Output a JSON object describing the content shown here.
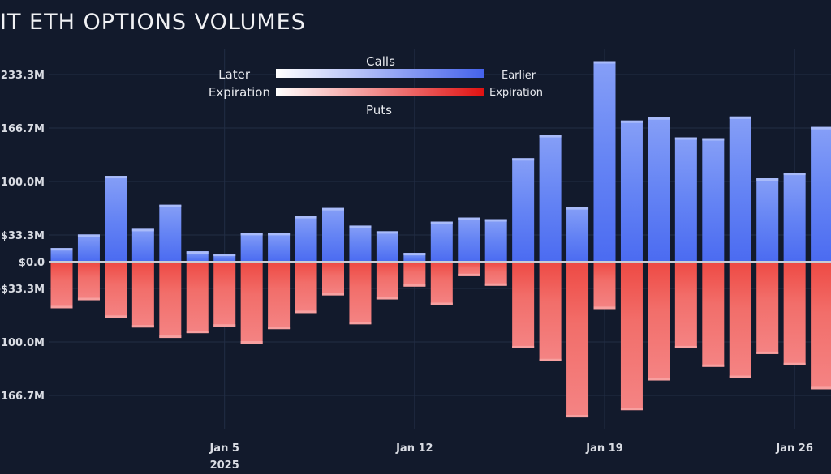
{
  "title": "IT ETH OPTIONS VOLUMES",
  "chart_data": {
    "type": "bar",
    "stacked": true,
    "title": "IT ETH OPTIONS VOLUMES",
    "xlabel": "",
    "ylabel": "",
    "ylim": [
      -233.3,
      250
    ],
    "yunit": "M USD",
    "y_ticks": [
      {
        "value": 233.3,
        "label": "$233.3M"
      },
      {
        "value": 166.7,
        "label": "$166.7M"
      },
      {
        "value": 100.0,
        "label": "$100.0M"
      },
      {
        "value": 33.3,
        "label": "$33.3M"
      },
      {
        "value": 0,
        "label": "$0.0"
      },
      {
        "value": -33.3,
        "label": "-$33.3M"
      },
      {
        "value": -100.0,
        "label": "-$100.0M"
      },
      {
        "value": -166.7,
        "label": "-$166.7M"
      }
    ],
    "x_ticks": [
      {
        "date": "2025-01-05",
        "label": "Jan 5",
        "sublabel": "2025"
      },
      {
        "date": "2025-01-12",
        "label": "Jan 12",
        "sublabel": ""
      },
      {
        "date": "2025-01-19",
        "label": "Jan 19",
        "sublabel": ""
      },
      {
        "date": "2025-01-26",
        "label": "Jan 26",
        "sublabel": ""
      }
    ],
    "grid": true,
    "categories": [
      "2024-12-30",
      "2024-12-31",
      "2025-01-01",
      "2025-01-02",
      "2025-01-03",
      "2025-01-04",
      "2025-01-05",
      "2025-01-06",
      "2025-01-07",
      "2025-01-08",
      "2025-01-09",
      "2025-01-10",
      "2025-01-11",
      "2025-01-12",
      "2025-01-13",
      "2025-01-14",
      "2025-01-15",
      "2025-01-16",
      "2025-01-17",
      "2025-01-18",
      "2025-01-19",
      "2025-01-20",
      "2025-01-21",
      "2025-01-22",
      "2025-01-23",
      "2025-01-24",
      "2025-01-25",
      "2025-01-26",
      "2025-01-27"
    ],
    "series": [
      {
        "name": "Calls",
        "color": "#4d6ef2",
        "light_color": "#8ea6f7",
        "values": [
          17,
          34,
          107,
          41,
          71,
          13,
          10,
          36,
          36,
          57,
          67,
          45,
          38,
          11,
          50,
          55,
          53,
          129,
          158,
          68,
          250,
          176,
          180,
          155,
          154,
          181,
          104,
          111,
          168
        ]
      },
      {
        "name": "Puts",
        "color": "#ef3a35",
        "light_color": "#f48282",
        "values": [
          -57,
          -47,
          -69,
          -81,
          -94,
          -88,
          -80,
          -101,
          -83,
          -63,
          -41,
          -77,
          -46,
          -30,
          -53,
          -17,
          -29,
          -107,
          -123,
          -193,
          -58,
          -184,
          -147,
          -107,
          -130,
          -144,
          -114,
          -128,
          -158
        ]
      }
    ],
    "legend": {
      "placement": "top-center",
      "calls_label": "Calls",
      "puts_label": "Puts",
      "left_label_1": "Later",
      "left_label_2": "Expiration",
      "right_label_1": "Earlier",
      "right_label_2": "Expiration"
    }
  },
  "colors": {
    "background": "#121a2c",
    "grid": "#243049",
    "calls": "#4d6ef2",
    "puts": "#ef3a35"
  }
}
